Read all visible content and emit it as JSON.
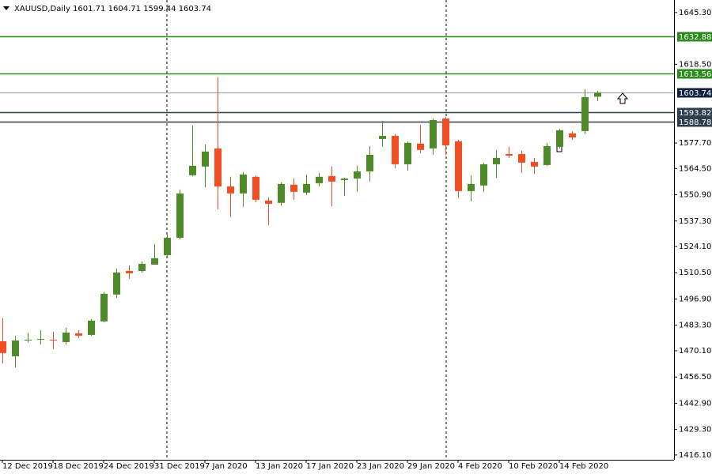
{
  "chart_data": {
    "type": "candlestick",
    "symbol": "XAUUSD,Daily",
    "categories": [
      "12 Dec 2019",
      null,
      null,
      null,
      "18 Dec 2019",
      null,
      null,
      null,
      "24 Dec 2019",
      null,
      null,
      null,
      "31 Dec 2019",
      null,
      null,
      null,
      "7 Jan 2020",
      null,
      null,
      null,
      "13 Jan 2020",
      null,
      null,
      null,
      "17 Jan 2020",
      null,
      null,
      null,
      "23 Jan 2020",
      null,
      null,
      null,
      "29 Jan 2020",
      null,
      null,
      null,
      "4 Feb 2020",
      null,
      null,
      null,
      "10 Feb 2020",
      null,
      null,
      null,
      "14 Feb 2020",
      null,
      null,
      null
    ],
    "open": [
      1475.0,
      1467.2,
      1475.4,
      1475.8,
      1475.8,
      1474.6,
      1479.1,
      1478.3,
      1485.3,
      1499.2,
      1511.4,
      1511.4,
      1514.7,
      1519.6,
      1528.6,
      1561.0,
      1565.5,
      1574.9,
      1555.2,
      1551.6,
      1560.2,
      1547.9,
      1546.7,
      1556.1,
      1552.0,
      1556.9,
      1560.6,
      1558.5,
      1559.3,
      1563.0,
      1579.8,
      1581.4,
      1566.7,
      1577.4,
      1574.9,
      1590.4,
      1578.6,
      1552.8,
      1555.7,
      1566.7,
      1572.0,
      1572.0,
      1567.9,
      1566.3,
      1575.7,
      1582.7,
      1583.9,
      1601.71
    ],
    "high": [
      1486.9,
      1477.9,
      1479.5,
      1480.7,
      1479.9,
      1482.0,
      1480.7,
      1486.5,
      1500.4,
      1512.7,
      1514.3,
      1516.4,
      1525.4,
      1530.3,
      1553.6,
      1586.8,
      1576.9,
      1611.7,
      1560.2,
      1562.6,
      1561.0,
      1549.5,
      1557.3,
      1559.3,
      1561.4,
      1562.2,
      1565.5,
      1559.7,
      1565.9,
      1576.1,
      1589.2,
      1582.3,
      1578.6,
      1587.2,
      1590.4,
      1591.3,
      1579.4,
      1561.0,
      1567.5,
      1574.1,
      1575.7,
      1573.7,
      1570.0,
      1577.8,
      1585.1,
      1583.9,
      1605.6,
      1604.71
    ],
    "low": [
      1463.6,
      1461.5,
      1474.2,
      1473.4,
      1470.9,
      1473.4,
      1476.7,
      1477.9,
      1484.8,
      1497.5,
      1507.4,
      1510.6,
      1514.7,
      1518.8,
      1527.8,
      1560.6,
      1554.8,
      1543.4,
      1539.3,
      1544.6,
      1547.1,
      1535.2,
      1545.4,
      1548.3,
      1550.7,
      1555.2,
      1545.0,
      1550.3,
      1552.4,
      1557.7,
      1575.7,
      1564.7,
      1563.4,
      1572.4,
      1571.6,
      1571.6,
      1549.1,
      1547.5,
      1552.4,
      1559.7,
      1570.0,
      1562.2,
      1561.8,
      1565.9,
      1574.9,
      1579.4,
      1582.3,
      1599.44
    ],
    "close": [
      1468.9,
      1475.4,
      1475.8,
      1476.2,
      1475.4,
      1479.5,
      1477.9,
      1485.7,
      1499.6,
      1510.6,
      1510.2,
      1515.1,
      1518.0,
      1528.6,
      1551.6,
      1565.9,
      1573.3,
      1555.2,
      1551.6,
      1561.4,
      1548.3,
      1546.2,
      1556.5,
      1552.4,
      1556.5,
      1560.2,
      1557.7,
      1559.3,
      1563.0,
      1571.6,
      1581.4,
      1566.7,
      1577.8,
      1574.1,
      1589.6,
      1576.5,
      1552.8,
      1556.5,
      1566.7,
      1570.0,
      1571.2,
      1567.5,
      1565.5,
      1576.1,
      1584.3,
      1580.6,
      1601.5,
      1603.74
    ],
    "up_color": "#4e8a28",
    "down_color": "#f24e22",
    "ylim": [
      1413.6,
      1651.8
    ],
    "yticks": [
      {
        "value": 1645.3,
        "label": "1645.30"
      },
      {
        "value": 1618.5,
        "label": "1618.50"
      },
      {
        "value": 1577.7,
        "label": "1577.70"
      },
      {
        "value": 1564.5,
        "label": "1564.50"
      },
      {
        "value": 1550.9,
        "label": "1550.90"
      },
      {
        "value": 1537.3,
        "label": "1537.30"
      },
      {
        "value": 1524.1,
        "label": "1524.10"
      },
      {
        "value": 1510.5,
        "label": "1510.50"
      },
      {
        "value": 1496.9,
        "label": "1496.90"
      },
      {
        "value": 1483.3,
        "label": "1483.30"
      },
      {
        "value": 1470.1,
        "label": "1470.10"
      },
      {
        "value": 1456.5,
        "label": "1456.50"
      },
      {
        "value": 1442.9,
        "label": "1442.90"
      },
      {
        "value": 1429.3,
        "label": "1429.30"
      },
      {
        "value": 1416.1,
        "label": "1416.10"
      }
    ],
    "hlines": [
      {
        "value": 1632.88,
        "color": "#2e8a1e"
      },
      {
        "value": 1613.56,
        "color": "#2e8a1e"
      },
      {
        "value": 1603.74,
        "color": "#14233f"
      },
      {
        "value": 1593.82,
        "color": "#2f3e4c"
      },
      {
        "value": 1588.78,
        "color": "#2f3e4c"
      }
    ]
  }
}
